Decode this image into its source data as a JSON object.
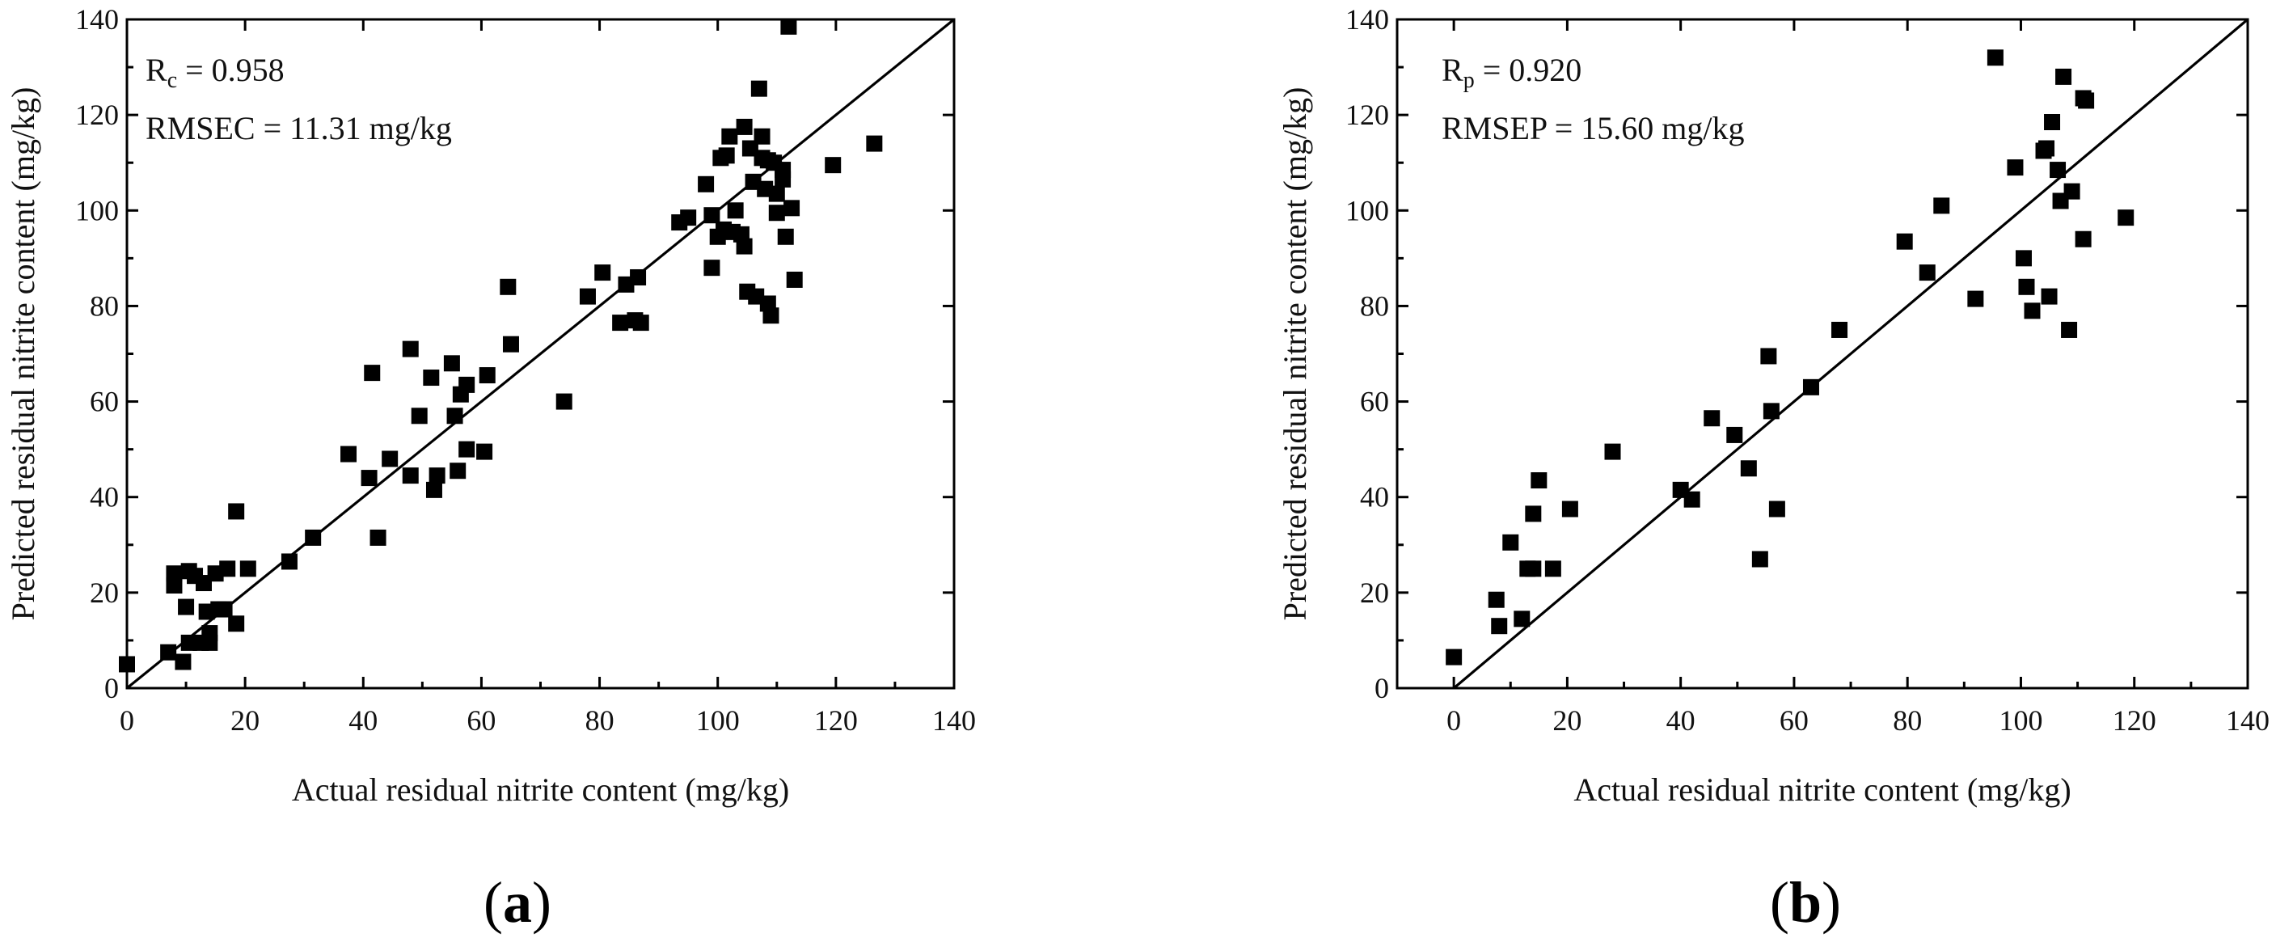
{
  "chart_data": [
    {
      "type": "scatter",
      "panel_label": "a",
      "xlabel": "Actual residual nitrite content (mg/kg)",
      "ylabel": "Predicted residual nitrite content (mg/kg)",
      "xlim": [
        0,
        140
      ],
      "ylim": [
        0,
        140
      ],
      "xticks": [
        0,
        20,
        40,
        60,
        80,
        100,
        120,
        140
      ],
      "yticks": [
        0,
        20,
        40,
        60,
        80,
        100,
        120,
        140
      ],
      "grid": false,
      "reference_line": "y = x",
      "stat_symbol": "R",
      "stat_subscript": "c",
      "stat_value": "= 0.958",
      "rmse_text": "RMSEC = 11.31 mg/kg",
      "points": [
        [
          0,
          5
        ],
        [
          7,
          7.5
        ],
        [
          8,
          24
        ],
        [
          8,
          21.5
        ],
        [
          9.5,
          5.5
        ],
        [
          10,
          17
        ],
        [
          10.5,
          9.5
        ],
        [
          10.5,
          24.5
        ],
        [
          11.5,
          23.5
        ],
        [
          12.5,
          9.5
        ],
        [
          13,
          22
        ],
        [
          13.5,
          16
        ],
        [
          14,
          9.5
        ],
        [
          14,
          11.5
        ],
        [
          15,
          24
        ],
        [
          15.5,
          16.5
        ],
        [
          16.5,
          16.5
        ],
        [
          17,
          25
        ],
        [
          18.5,
          37
        ],
        [
          18.5,
          13.5
        ],
        [
          20.5,
          25
        ],
        [
          27.5,
          26.5
        ],
        [
          31.5,
          31.5
        ],
        [
          37.5,
          49
        ],
        [
          41,
          44
        ],
        [
          41.5,
          66
        ],
        [
          42.5,
          31.5
        ],
        [
          44.5,
          48
        ],
        [
          48,
          71
        ],
        [
          48,
          44.5
        ],
        [
          49.5,
          57
        ],
        [
          51.5,
          65
        ],
        [
          52,
          41.5
        ],
        [
          52.5,
          44.5
        ],
        [
          55,
          68
        ],
        [
          55.5,
          57
        ],
        [
          56,
          45.5
        ],
        [
          56.5,
          61.5
        ],
        [
          57.5,
          63.5
        ],
        [
          57.5,
          50
        ],
        [
          60.5,
          49.5
        ],
        [
          61,
          65.5
        ],
        [
          64.5,
          84
        ],
        [
          65,
          72
        ],
        [
          74,
          60
        ],
        [
          78,
          82
        ],
        [
          80.5,
          87
        ],
        [
          83.5,
          76.5
        ],
        [
          84.5,
          84.5
        ],
        [
          86,
          77
        ],
        [
          86.5,
          86
        ],
        [
          87,
          76.5
        ],
        [
          93.5,
          97.5
        ],
        [
          95,
          98.5
        ],
        [
          98,
          105.5
        ],
        [
          99,
          88
        ],
        [
          99,
          99
        ],
        [
          100,
          94.5
        ],
        [
          100.5,
          111
        ],
        [
          101,
          96
        ],
        [
          101.5,
          111.5
        ],
        [
          102,
          115.5
        ],
        [
          102.5,
          95.5
        ],
        [
          103,
          100
        ],
        [
          104,
          95
        ],
        [
          104.5,
          117.5
        ],
        [
          104.5,
          92.5
        ],
        [
          105,
          83
        ],
        [
          105.5,
          113
        ],
        [
          106,
          106
        ],
        [
          106.5,
          82
        ],
        [
          107,
          125.5
        ],
        [
          107.5,
          111
        ],
        [
          107.5,
          115.5
        ],
        [
          108,
          104.5
        ],
        [
          108.5,
          110.5
        ],
        [
          108.5,
          80.5
        ],
        [
          109,
          78
        ],
        [
          109.5,
          110
        ],
        [
          110,
          103.5
        ],
        [
          110,
          99.5
        ],
        [
          111,
          106.5
        ],
        [
          111,
          108.5
        ],
        [
          111.5,
          94.5
        ],
        [
          112,
          138.5
        ],
        [
          112.5,
          100.5
        ],
        [
          113,
          85.5
        ],
        [
          119.5,
          109.5
        ],
        [
          126.5,
          114
        ]
      ]
    },
    {
      "type": "scatter",
      "panel_label": "b",
      "xlabel": "Actual residual nitrite content (mg/kg)",
      "ylabel": "Predicted residual nitrite content (mg/kg)",
      "xlim": [
        -10,
        140
      ],
      "ylim": [
        0,
        140
      ],
      "xticks": [
        0,
        20,
        40,
        60,
        80,
        100,
        120,
        140
      ],
      "yticks": [
        0,
        20,
        40,
        60,
        80,
        100,
        120,
        140
      ],
      "grid": false,
      "reference_line": "y = x",
      "stat_symbol": "R",
      "stat_subscript": "p",
      "stat_value": "= 0.920",
      "rmse_text": "RMSEP = 15.60 mg/kg",
      "points": [
        [
          0,
          6.5
        ],
        [
          7.5,
          18.5
        ],
        [
          8,
          13
        ],
        [
          10,
          30.5
        ],
        [
          12,
          14.5
        ],
        [
          13,
          25
        ],
        [
          14,
          36.5
        ],
        [
          14,
          25
        ],
        [
          15,
          43.5
        ],
        [
          17.5,
          25
        ],
        [
          20.5,
          37.5
        ],
        [
          28,
          49.5
        ],
        [
          40,
          41.5
        ],
        [
          42,
          39.5
        ],
        [
          45.5,
          56.5
        ],
        [
          49.5,
          53
        ],
        [
          52,
          46
        ],
        [
          54,
          27
        ],
        [
          55.5,
          69.5
        ],
        [
          56,
          58
        ],
        [
          57,
          37.5
        ],
        [
          63,
          63
        ],
        [
          68,
          75
        ],
        [
          79.5,
          93.5
        ],
        [
          83.5,
          87
        ],
        [
          86,
          101
        ],
        [
          92,
          81.5
        ],
        [
          95.5,
          132
        ],
        [
          99,
          109
        ],
        [
          100.5,
          90
        ],
        [
          101,
          84
        ],
        [
          102,
          79
        ],
        [
          104,
          112.5
        ],
        [
          104.5,
          113
        ],
        [
          105,
          82
        ],
        [
          105.5,
          118.5
        ],
        [
          106.5,
          108.5
        ],
        [
          107,
          102
        ],
        [
          107.5,
          128
        ],
        [
          108.5,
          75
        ],
        [
          109,
          104
        ],
        [
          111,
          94
        ],
        [
          111,
          123.5
        ],
        [
          111.5,
          123
        ],
        [
          118.5,
          98.5
        ]
      ]
    }
  ]
}
